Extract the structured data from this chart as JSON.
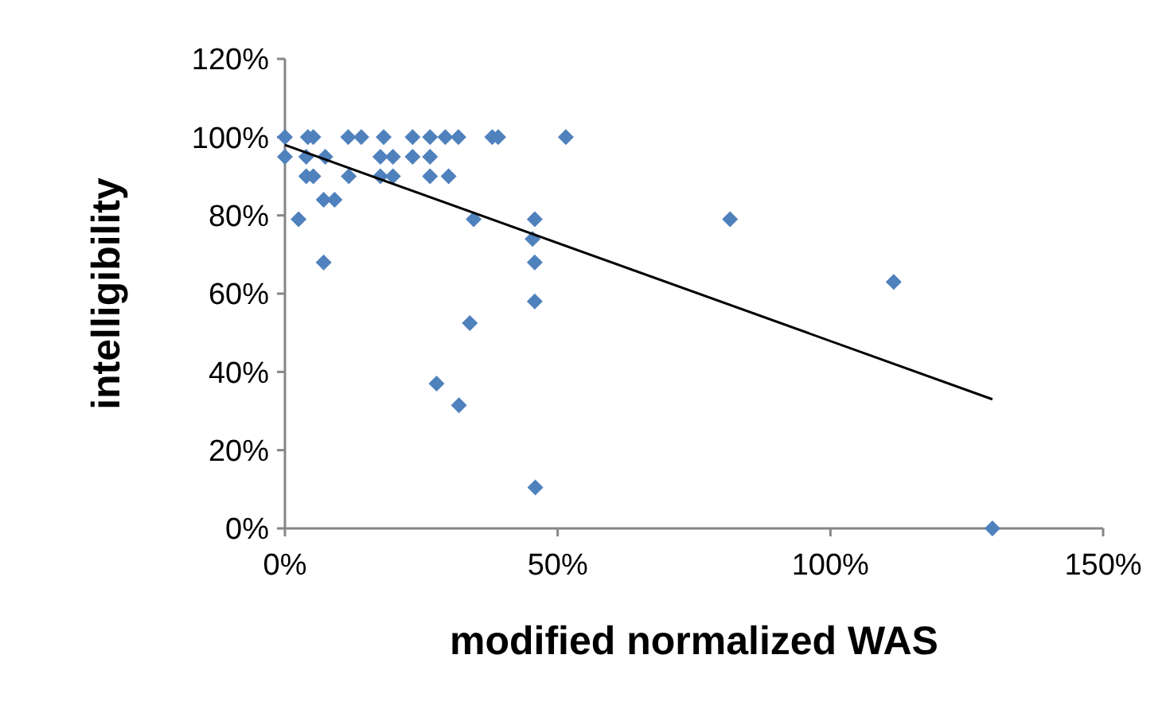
{
  "chart_data": {
    "type": "scatter",
    "xlabel": "modified normalized WAS",
    "ylabel": "intelligibility",
    "grid": false,
    "xlim": [
      0,
      150
    ],
    "xticks": [
      {
        "value": 0,
        "label": "0%"
      },
      {
        "value": 50,
        "label": "50%"
      },
      {
        "value": 100,
        "label": "100%"
      },
      {
        "value": 150,
        "label": "150%"
      }
    ],
    "ylim": [
      0,
      120
    ],
    "yticks": [
      {
        "value": 0,
        "label": "0%"
      },
      {
        "value": 20,
        "label": "20%"
      },
      {
        "value": 40,
        "label": "40%"
      },
      {
        "value": 60,
        "label": "60%"
      },
      {
        "value": 80,
        "label": "80%"
      },
      {
        "value": 100,
        "label": "100%"
      },
      {
        "value": 120,
        "label": "120%"
      }
    ],
    "series": [
      {
        "marker": "diamond",
        "color": "#4f81bd",
        "x": [
          0,
          4.2,
          5.2,
          11.6,
          14,
          18.1,
          23.4,
          26.6,
          29.4,
          31.8,
          38,
          39.1,
          51.5,
          0,
          3.9,
          7.4,
          17.5,
          19.8,
          23.4,
          26.6,
          3.9,
          5.2,
          11.7,
          17.5,
          19.8,
          26.6,
          30,
          7.1,
          9.1,
          2.5,
          34.6,
          45.8,
          45.4,
          7.1,
          45.8,
          45.8,
          33.9,
          27.8,
          31.9,
          45.9,
          81.6,
          111.6,
          129.7
        ],
        "values": [
          100,
          100,
          100,
          100,
          100,
          100,
          100,
          100,
          100,
          100,
          100,
          100,
          100,
          95,
          95,
          95,
          95,
          95,
          95,
          95,
          90,
          90,
          90,
          90,
          90,
          90,
          90,
          84,
          84,
          79,
          79,
          79,
          74,
          68,
          68,
          58,
          52.5,
          37,
          31.5,
          10.5,
          79,
          63,
          0
        ]
      },
      {
        "type": "line",
        "color": "#000000",
        "x": [
          0,
          129.7
        ],
        "values": [
          98,
          33
        ]
      }
    ]
  }
}
